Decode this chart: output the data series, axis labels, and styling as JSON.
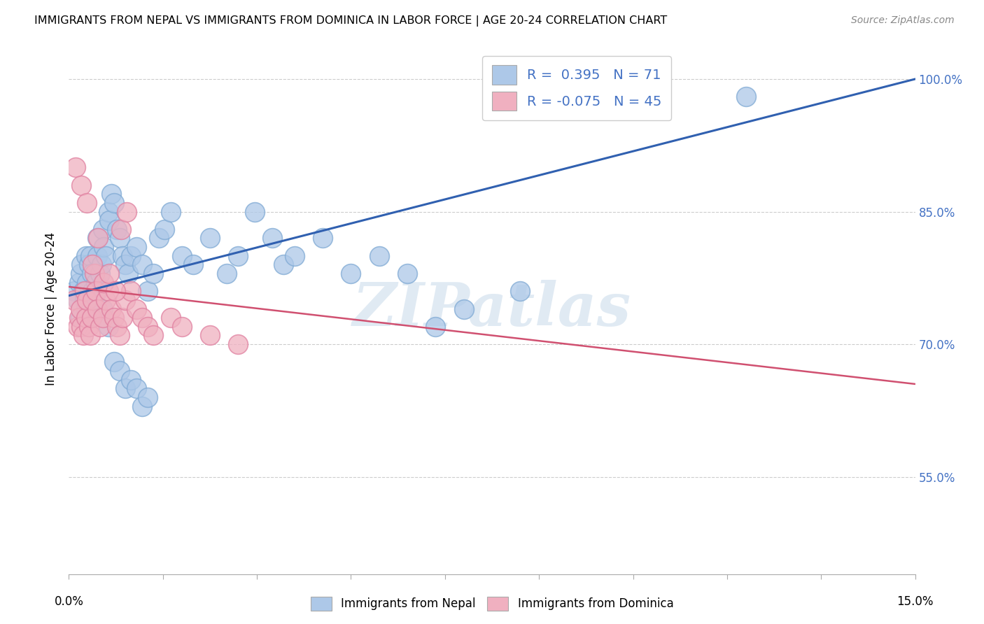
{
  "title": "IMMIGRANTS FROM NEPAL VS IMMIGRANTS FROM DOMINICA IN LABOR FORCE | AGE 20-24 CORRELATION CHART",
  "source": "Source: ZipAtlas.com",
  "ylabel": "In Labor Force | Age 20-24",
  "yticks": [
    55.0,
    70.0,
    85.0,
    100.0
  ],
  "xlim": [
    0.0,
    15.0
  ],
  "ylim": [
    44.0,
    104.0
  ],
  "nepal_color": "#adc8e8",
  "nepal_edge_color": "#80aad4",
  "dominica_color": "#f0b0c0",
  "dominica_edge_color": "#e080a0",
  "nepal_line_color": "#3060b0",
  "dominica_line_color": "#d05070",
  "legend_nepal_label": "R =  0.395   N = 71",
  "legend_dominica_label": "R = -0.075   N = 45",
  "legend_nepal_color": "#adc8e8",
  "legend_dominica_color": "#f0b0c0",
  "watermark": "ZIPatlas",
  "nepal_N": 71,
  "dominica_N": 45,
  "nepal_line_x": [
    0.0,
    15.0
  ],
  "nepal_line_y": [
    75.5,
    100.0
  ],
  "dominica_line_x": [
    0.0,
    15.0
  ],
  "dominica_line_y": [
    76.5,
    65.5
  ],
  "nepal_scatter_x": [
    0.1,
    0.15,
    0.18,
    0.2,
    0.22,
    0.25,
    0.28,
    0.3,
    0.3,
    0.32,
    0.35,
    0.38,
    0.4,
    0.42,
    0.45,
    0.48,
    0.5,
    0.5,
    0.55,
    0.58,
    0.6,
    0.62,
    0.65,
    0.7,
    0.72,
    0.75,
    0.8,
    0.85,
    0.9,
    0.95,
    1.0,
    1.05,
    1.1,
    1.2,
    1.3,
    1.4,
    1.5,
    1.6,
    1.7,
    1.8,
    2.0,
    2.2,
    2.5,
    2.8,
    3.0,
    3.3,
    3.6,
    3.8,
    4.0,
    4.5,
    5.0,
    5.5,
    6.0,
    6.5,
    7.0,
    8.0,
    9.5,
    12.0,
    0.2,
    0.3,
    0.4,
    0.5,
    0.6,
    0.7,
    0.8,
    0.9,
    1.0,
    1.1,
    1.2,
    1.3,
    1.4
  ],
  "nepal_scatter_y": [
    76,
    75,
    77,
    78,
    79,
    76,
    75,
    80,
    74,
    77,
    79,
    80,
    78,
    76,
    75,
    77,
    82,
    80,
    78,
    79,
    83,
    81,
    80,
    85,
    84,
    87,
    86,
    83,
    82,
    80,
    79,
    78,
    80,
    81,
    79,
    76,
    78,
    82,
    83,
    85,
    80,
    79,
    82,
    78,
    80,
    85,
    82,
    79,
    80,
    82,
    78,
    80,
    78,
    72,
    74,
    76,
    100,
    98,
    73,
    74,
    73,
    76,
    74,
    72,
    68,
    67,
    65,
    66,
    65,
    63,
    64
  ],
  "dominica_scatter_x": [
    0.1,
    0.15,
    0.18,
    0.2,
    0.22,
    0.25,
    0.28,
    0.3,
    0.32,
    0.35,
    0.38,
    0.4,
    0.42,
    0.45,
    0.48,
    0.5,
    0.55,
    0.6,
    0.65,
    0.7,
    0.75,
    0.8,
    0.85,
    0.9,
    0.95,
    1.0,
    1.1,
    1.2,
    1.3,
    1.4,
    1.5,
    1.8,
    2.0,
    2.5,
    3.0,
    0.12,
    0.22,
    0.32,
    0.42,
    0.52,
    0.62,
    0.72,
    0.82,
    0.92,
    1.02
  ],
  "dominica_scatter_y": [
    75,
    72,
    73,
    74,
    72,
    71,
    76,
    73,
    75,
    72,
    71,
    73,
    75,
    78,
    76,
    74,
    72,
    73,
    75,
    76,
    74,
    73,
    72,
    71,
    73,
    75,
    76,
    74,
    73,
    72,
    71,
    73,
    72,
    71,
    70,
    90,
    88,
    86,
    79,
    82,
    77,
    78,
    76,
    83,
    85
  ]
}
